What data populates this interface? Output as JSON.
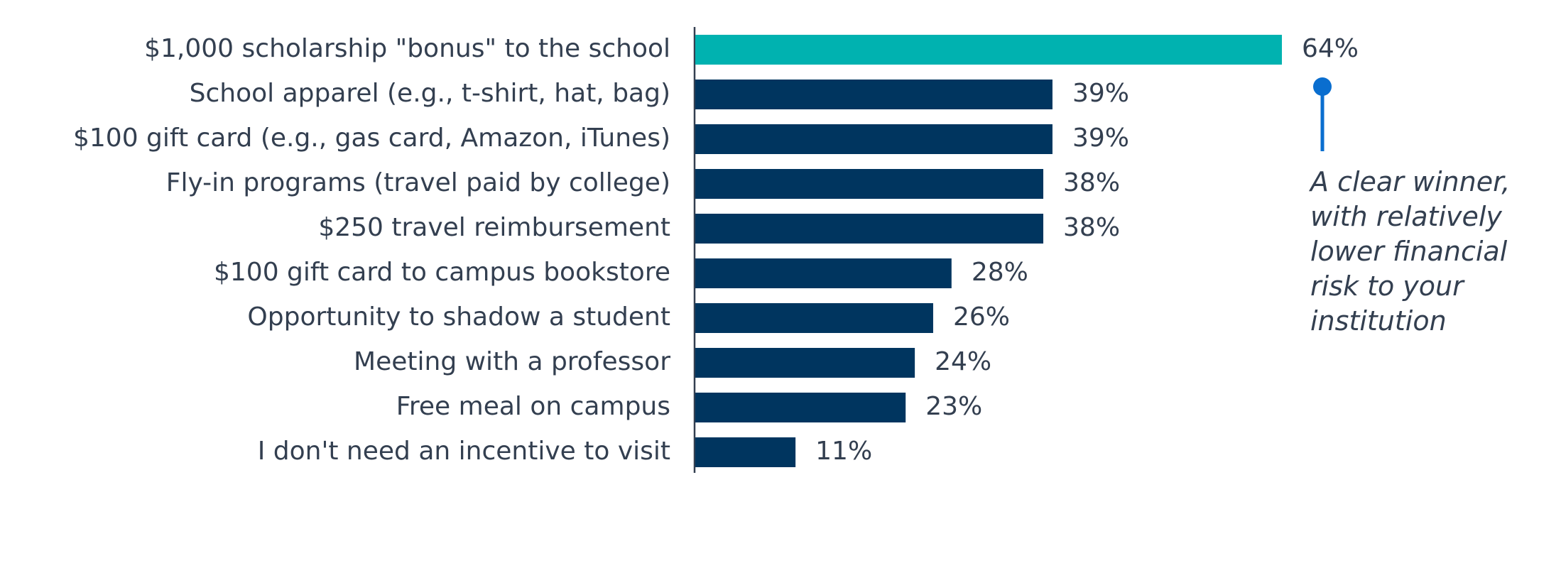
{
  "chart_data": {
    "type": "bar",
    "orientation": "horizontal",
    "categories": [
      "$1,000 scholarship \"bonus\" to the school",
      "School apparel (e.g., t-shirt, hat, bag)",
      "$100 gift card (e.g., gas card, Amazon, iTunes)",
      "Fly-in programs (travel paid by college)",
      "$250 travel reimbursement",
      "$100 gift card to campus bookstore",
      "Opportunity to shadow a student",
      "Meeting with a professor",
      "Free meal on campus",
      "I don't need an incentive to visit"
    ],
    "values": [
      64,
      39,
      39,
      38,
      38,
      28,
      26,
      24,
      23,
      11
    ],
    "value_labels": [
      "64%",
      "39%",
      "39%",
      "38%",
      "38%",
      "28%",
      "26%",
      "24%",
      "23%",
      "11%"
    ],
    "colors": [
      "#00b2b0",
      "#00355f",
      "#00355f",
      "#00355f",
      "#00355f",
      "#00355f",
      "#00355f",
      "#00355f",
      "#00355f",
      "#00355f"
    ],
    "annotation": "A clear winner, with relatively lower financial risk to your institution",
    "annotation_color": "#0a6ecf"
  }
}
